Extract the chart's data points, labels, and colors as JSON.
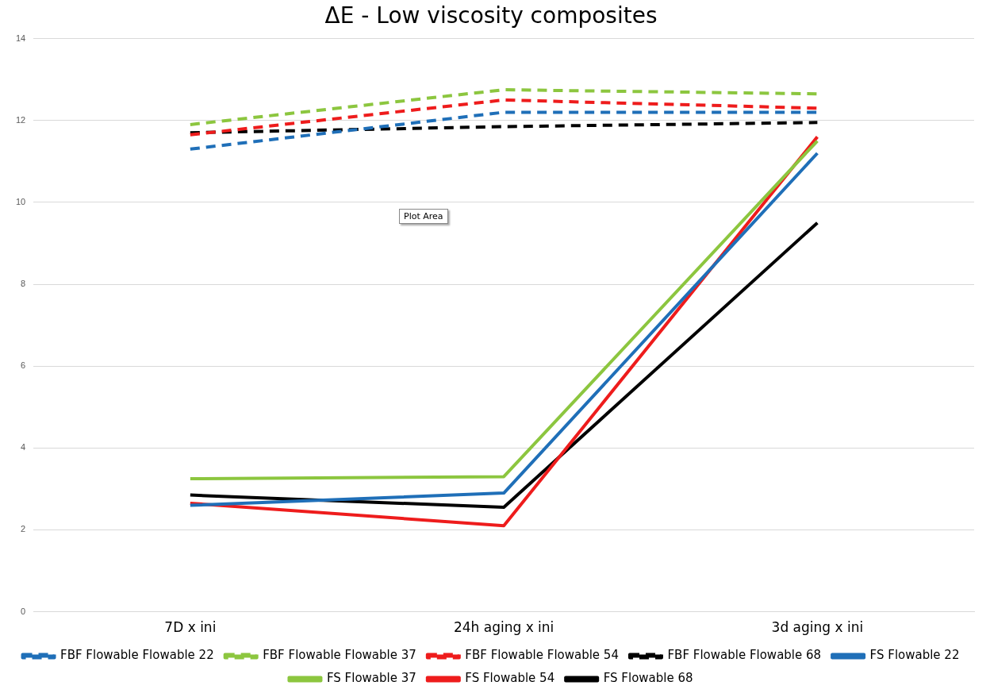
{
  "chart_data": {
    "type": "line",
    "title": "ΔE - Low viscosity composites",
    "categories": [
      "7D x ini",
      "24h aging x ini",
      "3d aging x ini"
    ],
    "series": [
      {
        "name": "FBF Flowable Flowable 22",
        "color": "#1f6fb8",
        "line_style": "dashed",
        "values": [
          11.3,
          12.2,
          12.2
        ]
      },
      {
        "name": "FBF Flowable Flowable 37",
        "color": "#8cc63f",
        "line_style": "dashed",
        "values": [
          11.9,
          12.75,
          12.65
        ]
      },
      {
        "name": "FBF Flowable Flowable 54",
        "color": "#ee1c1c",
        "line_style": "dashed",
        "values": [
          11.65,
          12.5,
          12.3
        ]
      },
      {
        "name": "FBF Flowable Flowable 68",
        "color": "#000000",
        "line_style": "dashed",
        "values": [
          11.7,
          11.85,
          11.95
        ]
      },
      {
        "name": "FS Flowable 22",
        "color": "#1f6fb8",
        "line_style": "solid",
        "values": [
          2.6,
          2.9,
          11.2
        ]
      },
      {
        "name": "FS Flowable 37",
        "color": "#8cc63f",
        "line_style": "solid",
        "values": [
          3.25,
          3.3,
          11.5
        ]
      },
      {
        "name": "FS Flowable 54",
        "color": "#ee1c1c",
        "line_style": "solid",
        "values": [
          2.65,
          2.1,
          11.6
        ]
      },
      {
        "name": "FS Flowable 68",
        "color": "#000000",
        "line_style": "solid",
        "values": [
          2.85,
          2.55,
          9.5
        ]
      }
    ],
    "ylim": [
      0,
      14
    ],
    "yticks": [
      0,
      2,
      4,
      6,
      8,
      10,
      12,
      14
    ],
    "grid": "y",
    "legend": "bottom",
    "marker": "none",
    "annotations": [
      "Plot Area"
    ]
  }
}
